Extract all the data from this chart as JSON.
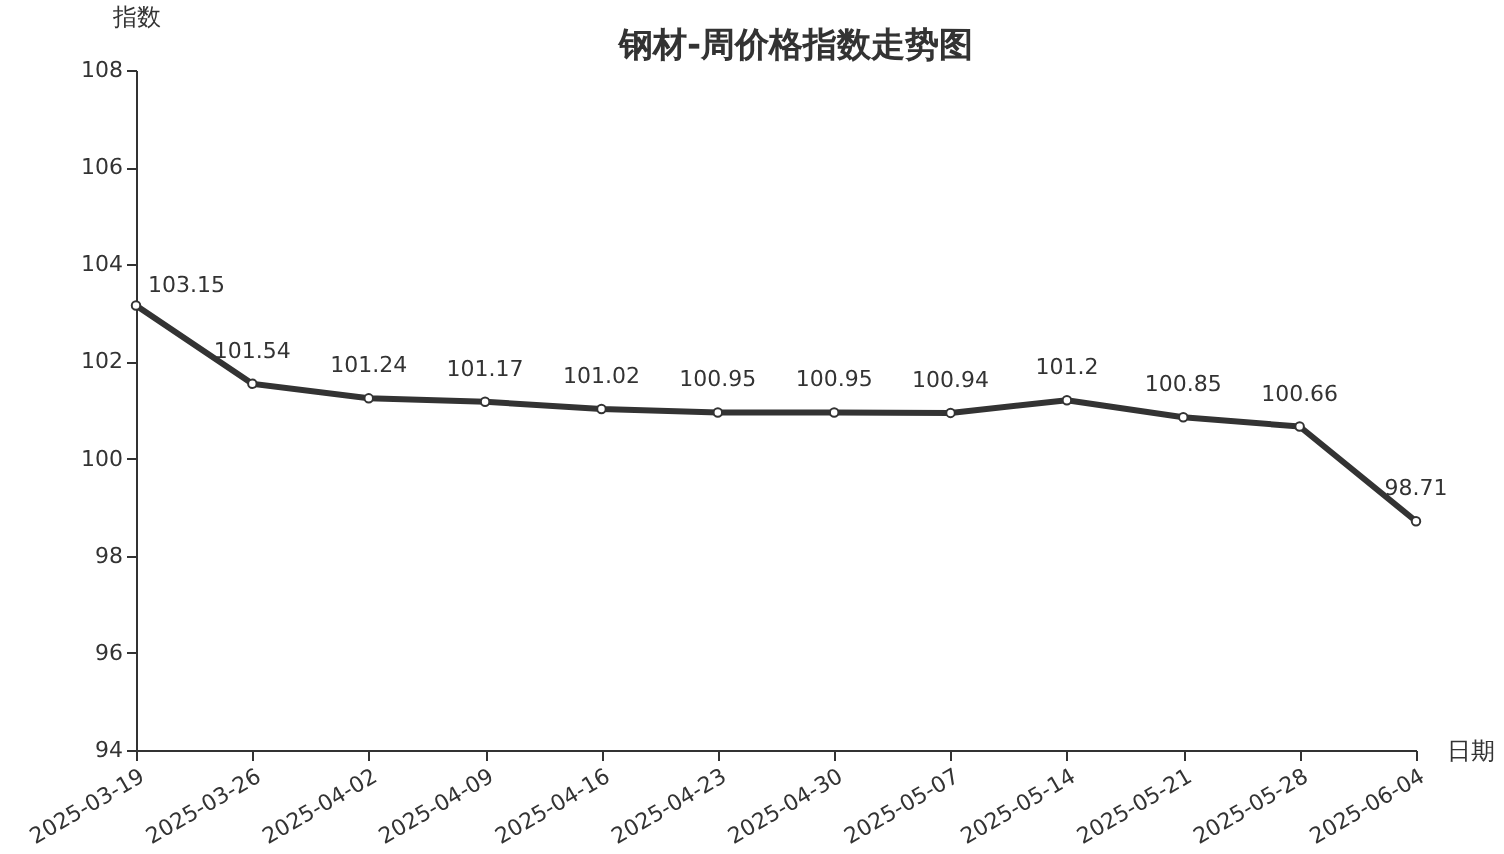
{
  "chart_data": {
    "type": "line",
    "title": "钢材-周价格指数走势图",
    "xlabel": "日期",
    "ylabel": "指数",
    "categories": [
      "2025-03-19",
      "2025-03-26",
      "2025-04-02",
      "2025-04-09",
      "2025-04-16",
      "2025-04-23",
      "2025-04-30",
      "2025-05-07",
      "2025-05-14",
      "2025-05-21",
      "2025-05-28",
      "2025-06-04"
    ],
    "series": [
      {
        "color": "#333333",
        "values": [
          103.15,
          101.54,
          101.24,
          101.17,
          101.02,
          100.95,
          100.95,
          100.94,
          101.2,
          100.85,
          100.66,
          98.71
        ]
      }
    ],
    "ylim": [
      94,
      108
    ],
    "yticks": [
      94,
      96,
      98,
      100,
      102,
      104,
      106,
      108
    ],
    "marker": "circle",
    "line_style": "solid",
    "data_labels": true
  }
}
